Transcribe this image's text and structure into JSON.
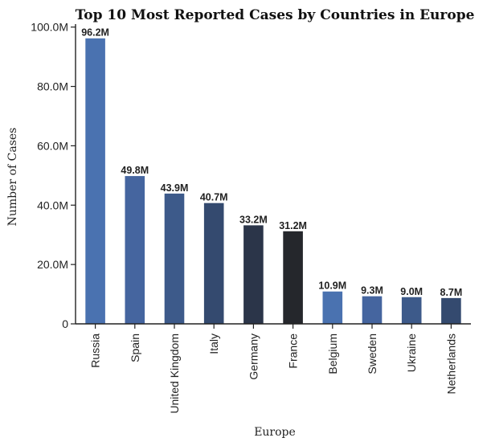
{
  "chart_data": {
    "type": "bar",
    "title": "Top 10 Most Reported Cases by Countries in Europe",
    "xlabel": "Europe",
    "ylabel": "Number of Cases",
    "categories": [
      "Russia",
      "Spain",
      "United Kingdom",
      "Italy",
      "Germany",
      "France",
      "Belgium",
      "Sweden",
      "Ukraine",
      "Netherlands"
    ],
    "values": [
      96200000,
      49800000,
      43900000,
      40700000,
      33200000,
      31200000,
      10900000,
      9300000,
      9000000,
      8700000
    ],
    "data_labels": [
      "96.2M",
      "49.8M",
      "43.9M",
      "40.7M",
      "33.2M",
      "31.2M",
      "10.9M",
      "9.3M",
      "9.0M",
      "8.7M"
    ],
    "bar_colors": [
      "#4a72b0",
      "#45659f",
      "#3d5a8a",
      "#344a6f",
      "#2b3549",
      "#25272c",
      "#4a72b0",
      "#45659f",
      "#3d5a8a",
      "#344a6f"
    ],
    "yticks": [
      0,
      20000000,
      40000000,
      60000000,
      80000000,
      100000000
    ],
    "ytick_labels": [
      "0",
      "20.0M",
      "40.0M",
      "60.0M",
      "80.0M",
      "100.0M"
    ],
    "ylim": [
      0,
      101000000
    ],
    "grid": false,
    "legend": "none"
  }
}
